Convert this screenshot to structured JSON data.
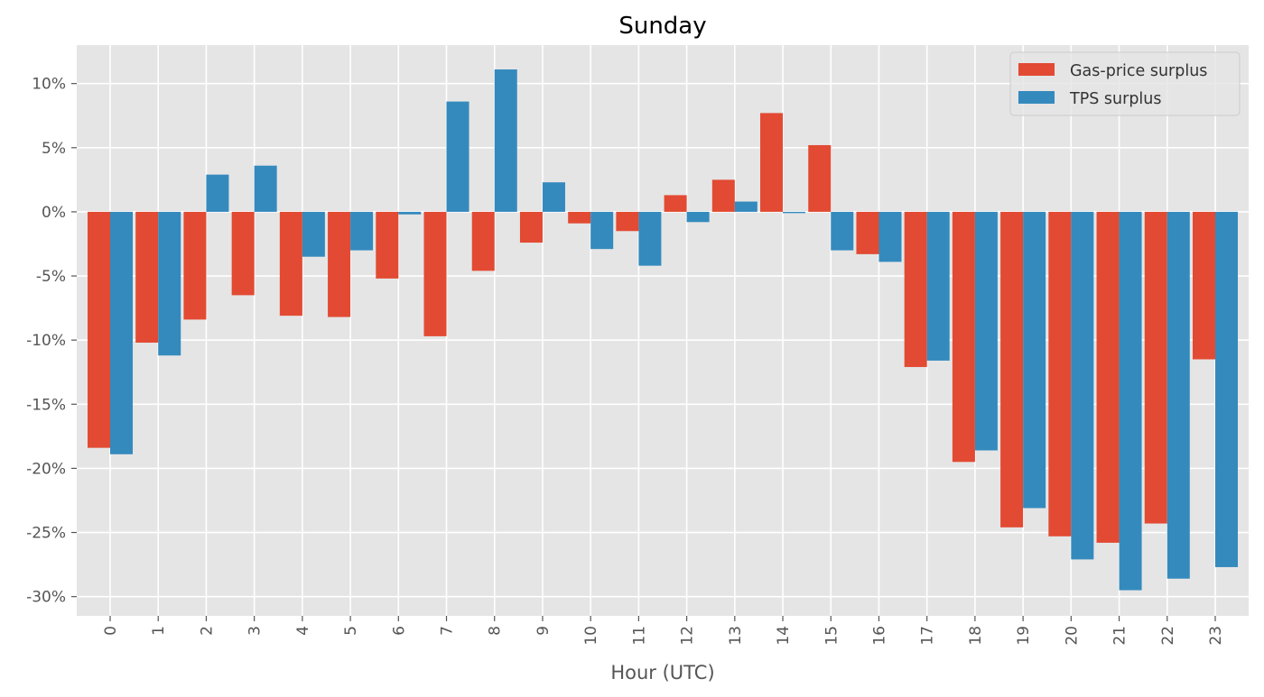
{
  "chart_data": {
    "type": "bar",
    "title": "Sunday",
    "xlabel": "Hour (UTC)",
    "ylabel": "",
    "categories": [
      "0",
      "1",
      "2",
      "3",
      "4",
      "5",
      "6",
      "7",
      "8",
      "9",
      "10",
      "11",
      "12",
      "13",
      "14",
      "15",
      "16",
      "17",
      "18",
      "19",
      "20",
      "21",
      "22",
      "23"
    ],
    "series": [
      {
        "name": "Gas-price surplus",
        "color": "#E24A33",
        "values": [
          -18.4,
          -10.2,
          -8.4,
          -6.5,
          -8.1,
          -8.2,
          -5.2,
          -9.7,
          -4.6,
          -2.4,
          -0.9,
          -1.5,
          1.3,
          2.5,
          7.7,
          5.2,
          -3.3,
          -12.1,
          -19.5,
          -24.6,
          -25.3,
          -25.8,
          -24.3,
          -11.5
        ]
      },
      {
        "name": "TPS surplus",
        "color": "#348ABD",
        "values": [
          -18.9,
          -11.2,
          2.9,
          3.6,
          -3.5,
          -3.0,
          -0.2,
          8.6,
          11.1,
          2.3,
          -2.9,
          -4.2,
          -0.8,
          0.8,
          -0.1,
          -3.0,
          -3.9,
          -11.6,
          -18.6,
          -23.1,
          -27.1,
          -29.5,
          -28.6,
          -27.7
        ]
      }
    ],
    "ylim": [
      -31.5,
      13.0
    ],
    "yticks": [
      10,
      5,
      0,
      -5,
      -10,
      -15,
      -20,
      -25,
      -30
    ],
    "ytick_format": "{v}%",
    "grid": true,
    "legend_position": "top-right",
    "background_color": "#E5E5E5",
    "grid_color": "#FFFFFF"
  }
}
